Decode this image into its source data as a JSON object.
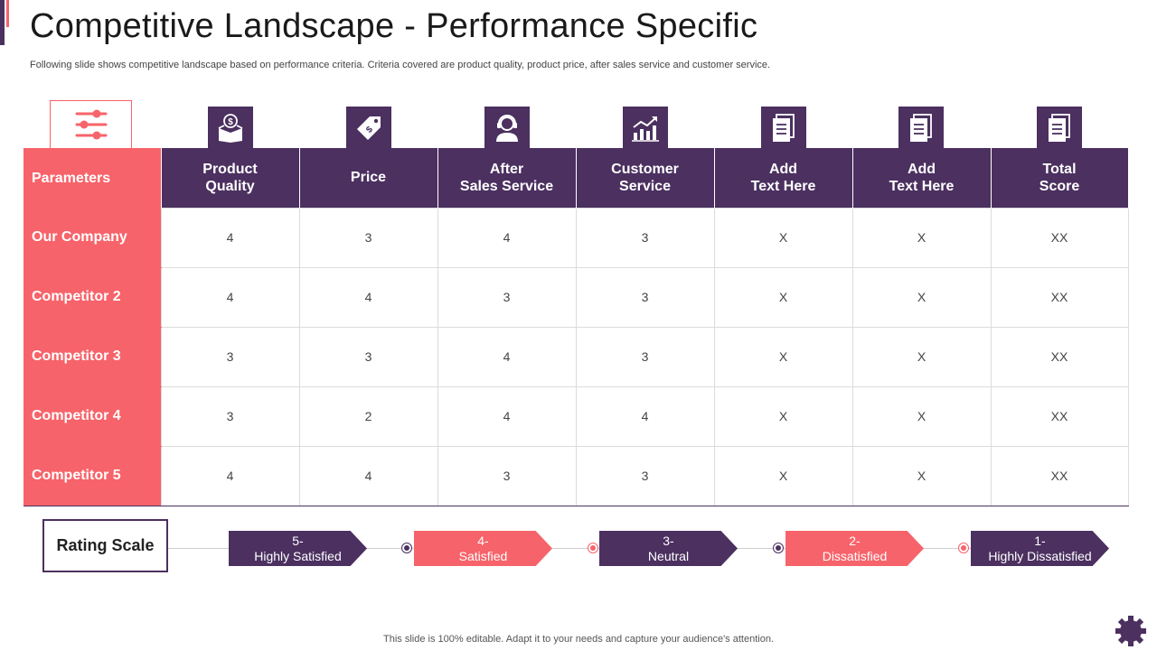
{
  "title": "Competitive Landscape - Performance Specific",
  "subtitle": "Following slide shows competitive landscape based on performance criteria. Criteria covered are product quality, product price, after sales service and customer service.",
  "icons": {
    "parameters": "sliders-icon",
    "product_quality": "money-box-icon",
    "price": "price-tag-icon",
    "after_sales": "support-agent-icon",
    "customer_service": "growth-chart-icon",
    "add_text_1": "document-icon",
    "add_text_2": "document-icon",
    "total_score": "document-icon"
  },
  "table": {
    "header": {
      "parameters": "Parameters",
      "product_quality_1": "Product",
      "product_quality_2": "Quality",
      "price": "Price",
      "after_sales_1": "After",
      "after_sales_2": "Sales Service",
      "customer_service_1": "Customer",
      "customer_service_2": "Service",
      "add_text_1a": "Add",
      "add_text_1b": "Text Here",
      "add_text_2a": "Add",
      "add_text_2b": "Text Here",
      "total_score_1": "Total",
      "total_score_2": "Score"
    },
    "rows": [
      {
        "label": "Our Company",
        "values": [
          "4",
          "3",
          "4",
          "3",
          "X",
          "X",
          "XX"
        ]
      },
      {
        "label": "Competitor 2",
        "values": [
          "4",
          "4",
          "3",
          "3",
          "X",
          "X",
          "XX"
        ]
      },
      {
        "label": "Competitor 3",
        "values": [
          "3",
          "3",
          "4",
          "3",
          "X",
          "X",
          "XX"
        ]
      },
      {
        "label": "Competitor 4",
        "values": [
          "3",
          "2",
          "4",
          "4",
          "X",
          "X",
          "XX"
        ]
      },
      {
        "label": "Competitor 5",
        "values": [
          "4",
          "4",
          "3",
          "3",
          "X",
          "X",
          "XX"
        ]
      }
    ]
  },
  "rating": {
    "label": "Rating Scale",
    "items": [
      {
        "number": "5-",
        "text": "Highly Satisfied"
      },
      {
        "number": "4-",
        "text": "Satisfied"
      },
      {
        "number": "3-",
        "text": "Neutral"
      },
      {
        "number": "2-",
        "text": "Dissatisfied"
      },
      {
        "number": "1-",
        "text": "Highly Dissatisfied"
      }
    ]
  },
  "footer": "This slide is 100% editable. Adapt it to your needs and capture your audience's attention.",
  "colors": {
    "purple": "#4b3060",
    "coral": "#f7636a"
  }
}
